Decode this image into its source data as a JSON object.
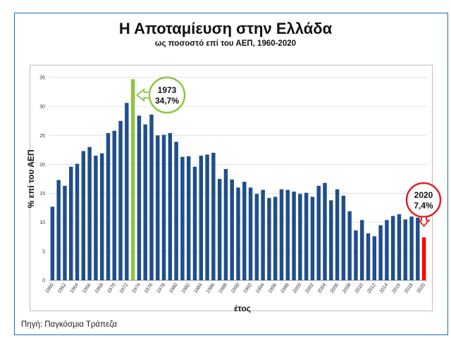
{
  "slide": {
    "title": "Η Αποταμίευση στην Ελλάδα",
    "subtitle": "ως ποσοστό επί του ΑΕΠ, 1960-2020",
    "source": "Πηγή: Παγκόσμια Τράπεζα"
  },
  "chart_data": {
    "type": "bar",
    "title": "Η Αποταμίευση στην Ελλάδα",
    "subtitle": "ως ποσοστό επί του ΑΕΠ, 1960-2020",
    "xlabel": "έτος",
    "ylabel": "% επί του ΑΕΠ",
    "ylim": [
      0,
      35
    ],
    "yticks": [
      0,
      5,
      10,
      15,
      20,
      25,
      30,
      35
    ],
    "grid": true,
    "legend": "none",
    "x_tick_labels": [
      "1960",
      "1962",
      "1964",
      "1966",
      "1968",
      "1970",
      "1972",
      "1974",
      "1976",
      "1978",
      "1980",
      "1982",
      "1984",
      "1986",
      "1988",
      "1990",
      "1992",
      "1994",
      "1996",
      "1998",
      "2000",
      "2002",
      "2004",
      "2006",
      "2008",
      "2010",
      "2012",
      "2014",
      "2016",
      "2018",
      "2020"
    ],
    "categories": [
      1960,
      1961,
      1962,
      1963,
      1964,
      1965,
      1966,
      1967,
      1968,
      1969,
      1970,
      1971,
      1972,
      1973,
      1974,
      1975,
      1976,
      1977,
      1978,
      1979,
      1980,
      1981,
      1982,
      1983,
      1984,
      1985,
      1986,
      1987,
      1988,
      1989,
      1990,
      1991,
      1992,
      1993,
      1994,
      1995,
      1996,
      1997,
      1998,
      1999,
      2000,
      2001,
      2002,
      2003,
      2004,
      2005,
      2006,
      2007,
      2008,
      2009,
      2010,
      2011,
      2012,
      2013,
      2014,
      2015,
      2016,
      2017,
      2018,
      2019,
      2020
    ],
    "values": [
      12.7,
      17.3,
      16.3,
      19.6,
      20.1,
      22.3,
      23.0,
      21.5,
      21.9,
      25.4,
      25.8,
      27.5,
      30.6,
      34.7,
      28.4,
      26.9,
      28.6,
      25.0,
      25.1,
      25.4,
      23.9,
      21.3,
      21.4,
      19.6,
      21.5,
      21.7,
      22.0,
      17.5,
      19.2,
      17.4,
      16.0,
      17.0,
      16.0,
      14.9,
      15.6,
      14.2,
      14.4,
      15.7,
      15.6,
      15.3,
      14.9,
      15.1,
      14.4,
      16.3,
      16.8,
      13.8,
      15.7,
      14.6,
      11.9,
      8.6,
      10.4,
      8.1,
      7.6,
      9.5,
      10.4,
      11.1,
      11.4,
      10.5,
      11.0,
      10.8,
      7.4
    ],
    "highlights": [
      {
        "category": 1973,
        "value": 34.7,
        "color": "#8dc63f",
        "label_year": "1973",
        "label_value": "34,7%",
        "ring_color": "#8dc63f"
      },
      {
        "category": 2020,
        "value": 7.4,
        "color": "#ff0000",
        "label_year": "2020",
        "label_value": "7,4%",
        "ring_color": "#e02020"
      }
    ],
    "colors": {
      "bars": "#1f4e8c",
      "grid": "#d9d9d9",
      "axis": "#888888"
    }
  }
}
